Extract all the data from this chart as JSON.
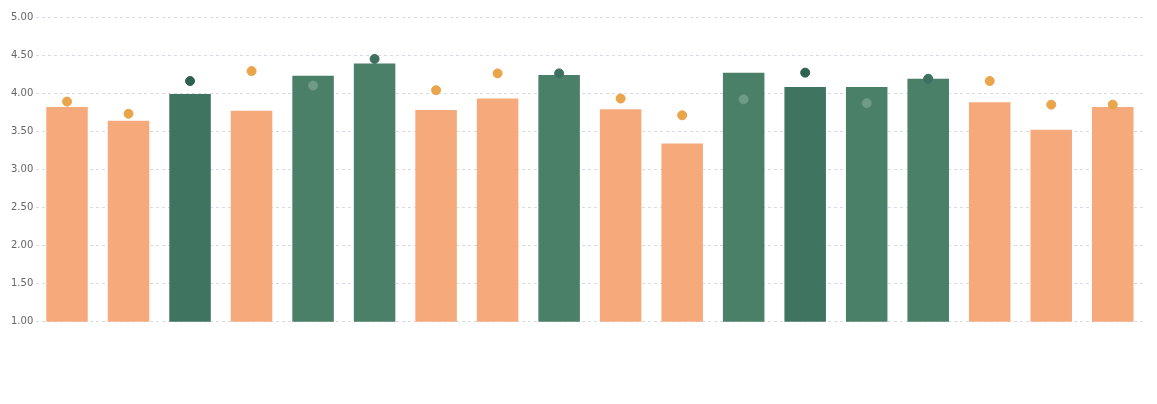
{
  "chart_data": {
    "type": "bar",
    "categories": [
      null,
      null,
      null,
      null,
      null,
      null,
      null,
      null,
      null,
      null,
      null,
      null,
      null,
      null,
      null,
      null,
      null,
      null
    ],
    "series": [
      {
        "colors": [
          "#f6aa7c",
          "#f6aa7c",
          "#3f7560",
          "#f6aa7c",
          "#4a7f68",
          "#4a7f68",
          "#f6aa7c",
          "#f6aa7c",
          "#4a7f68",
          "#f6aa7c",
          "#f6aa7c",
          "#4a7f68",
          "#3f7560",
          "#4a7f68",
          "#4a7f68",
          "#f6aa7c",
          "#f6aa7c",
          "#f6aa7c"
        ],
        "values": [
          3.82,
          3.64,
          3.99,
          3.77,
          4.23,
          4.39,
          3.78,
          3.93,
          4.24,
          3.79,
          3.34,
          4.27,
          4.08,
          4.08,
          4.19,
          3.88,
          3.52,
          3.82
        ]
      },
      {
        "type": "scatter",
        "colors": [
          "#eaa44a",
          "#eaa44a",
          "#2f6150",
          "#eaa44a",
          "#6f9a86",
          "#3f6f5e",
          "#eaa44a",
          "#eaa44a",
          "#3f6f5e",
          "#eaa44a",
          "#eaa44a",
          "#6f9a86",
          "#2f6150",
          "#6f9a86",
          "#3f6f5e",
          "#eaa44a",
          "#eaa44a",
          "#eaa44a"
        ],
        "values": [
          3.89,
          3.73,
          4.16,
          4.29,
          4.1,
          4.45,
          4.04,
          4.26,
          4.26,
          3.93,
          3.71,
          3.92,
          4.27,
          3.87,
          4.19,
          4.16,
          3.85,
          3.85
        ]
      }
    ],
    "ylim": [
      1,
      5
    ],
    "yticks": [
      {
        "value": 1,
        "label": "1.00"
      },
      {
        "value": 1.5,
        "label": "1.50"
      },
      {
        "value": 2,
        "label": "2.00"
      },
      {
        "value": 2.5,
        "label": "2.50"
      },
      {
        "value": 3,
        "label": "3.00"
      },
      {
        "value": 3.5,
        "label": "3.50"
      },
      {
        "value": 4,
        "label": "4.00"
      },
      {
        "value": 4.5,
        "label": "4.50"
      },
      {
        "value": 5,
        "label": "5.00"
      }
    ],
    "grid": "y",
    "legend": false,
    "marker": "circle"
  }
}
